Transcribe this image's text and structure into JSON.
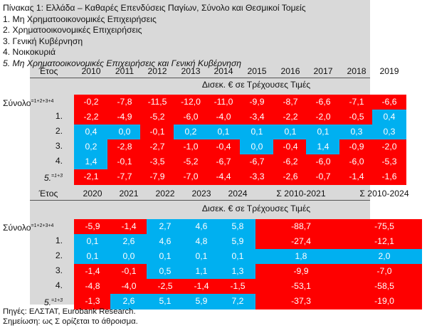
{
  "header": {
    "title": "Πίνακας 1: Ελλάδα – Καθαρές Επενδύσεις Παγίων, Σύνολο και Θεσμικοί Τομείς",
    "lines": [
      "1. Μη Χρηματοοικονομικές Επιχειρήσεις",
      "2. Χρηματοοικονομικές Επιχειρήσεις",
      "3. Γενική Κυβέρνηση",
      "4. Νοικοκυριά",
      "5. Μη Χρηματοοικονομικές Επιχειρήσεις και Γενική Κυβέρνηση"
    ]
  },
  "table1": {
    "year_label": "Έτος",
    "years": [
      "2010",
      "2011",
      "2012",
      "2013",
      "2014",
      "2015",
      "2016",
      "2017",
      "2018",
      "2019"
    ],
    "unit": "Δισεκ. € σε Τρέχουσες Τιμές",
    "rows": [
      {
        "label": "Σύνολο",
        "sup": "=1+2+3+4",
        "italic": false,
        "values": [
          "-0,2",
          "-7,8",
          "-11,5",
          "-12,0",
          "-11,0",
          "-9,9",
          "-8,7",
          "-6,6",
          "-7,1",
          "-6,6"
        ],
        "colors": [
          "r",
          "r",
          "r",
          "r",
          "r",
          "r",
          "r",
          "r",
          "r",
          "r"
        ]
      },
      {
        "label": "1.",
        "sup": "",
        "italic": false,
        "values": [
          "-2,2",
          "-4,9",
          "-5,2",
          "-6,0",
          "-4,0",
          "-3,4",
          "-2,2",
          "-2,0",
          "-0,5",
          "0,4"
        ],
        "colors": [
          "r",
          "r",
          "r",
          "r",
          "r",
          "r",
          "r",
          "r",
          "r",
          "b"
        ]
      },
      {
        "label": "2.",
        "sup": "",
        "italic": false,
        "values": [
          "0,4",
          "0,0",
          "-0,1",
          "0,2",
          "0,1",
          "0,1",
          "0,1",
          "0,1",
          "0,3",
          "0,3"
        ],
        "colors": [
          "b",
          "b",
          "r",
          "b",
          "b",
          "b",
          "b",
          "b",
          "b",
          "b"
        ]
      },
      {
        "label": "3.",
        "sup": "",
        "italic": false,
        "values": [
          "0,2",
          "-2,8",
          "-2,7",
          "-1,0",
          "-0,4",
          "0,0",
          "-0,4",
          "1,4",
          "-0,9",
          "-2,0"
        ],
        "colors": [
          "b",
          "r",
          "r",
          "r",
          "r",
          "b",
          "r",
          "b",
          "r",
          "r"
        ]
      },
      {
        "label": "4.",
        "sup": "",
        "italic": false,
        "values": [
          "1,4",
          "-0,1",
          "-3,5",
          "-5,2",
          "-6,7",
          "-6,7",
          "-6,2",
          "-6,0",
          "-6,0",
          "-5,3"
        ],
        "colors": [
          "b",
          "r",
          "r",
          "r",
          "r",
          "r",
          "r",
          "r",
          "r",
          "r"
        ]
      },
      {
        "label": "5.",
        "sup": "=1+3",
        "italic": true,
        "values": [
          "-2,1",
          "-7,7",
          "-7,9",
          "-7,0",
          "-4,4",
          "-3,3",
          "-2,6",
          "-0,7",
          "-1,4",
          "-1,6"
        ],
        "colors": [
          "r",
          "r",
          "r",
          "r",
          "r",
          "r",
          "r",
          "r",
          "r",
          "r"
        ]
      }
    ]
  },
  "table2": {
    "year_label": "Έτος",
    "years": [
      "2020",
      "2021",
      "2022",
      "2023",
      "2024",
      "Σ 2010-2021",
      "Σ 2010-2024"
    ],
    "unit": "Δισεκ. € σε Τρέχουσες Τιμές",
    "rows": [
      {
        "label": "Σύνολο",
        "sup": "=1+2+3+4",
        "italic": false,
        "values": [
          "-5,9",
          "-1,4",
          "2,7",
          "4,6",
          "5,8",
          "-88,7",
          "-75,5"
        ],
        "colors": [
          "r",
          "r",
          "b",
          "b",
          "b",
          "r",
          "r"
        ]
      },
      {
        "label": "1.",
        "sup": "",
        "italic": false,
        "values": [
          "0,1",
          "2,6",
          "4,6",
          "4,8",
          "5,9",
          "-27,4",
          "-12,1"
        ],
        "colors": [
          "b",
          "b",
          "b",
          "b",
          "b",
          "r",
          "r"
        ]
      },
      {
        "label": "2.",
        "sup": "",
        "italic": false,
        "values": [
          "0,1",
          "0,0",
          "0,1",
          "0,1",
          "0,1",
          "1,8",
          "2,0"
        ],
        "colors": [
          "b",
          "b",
          "b",
          "b",
          "b",
          "b",
          "b"
        ]
      },
      {
        "label": "3.",
        "sup": "",
        "italic": false,
        "values": [
          "-1,4",
          "-0,1",
          "0,5",
          "1,1",
          "1,3",
          "-9,9",
          "-7,0"
        ],
        "colors": [
          "r",
          "r",
          "b",
          "b",
          "b",
          "r",
          "r"
        ]
      },
      {
        "label": "4.",
        "sup": "",
        "italic": false,
        "values": [
          "-4,8",
          "-4,0",
          "-2,5",
          "-1,4",
          "-1,5",
          "-53,1",
          "-58,5"
        ],
        "colors": [
          "r",
          "r",
          "r",
          "r",
          "r",
          "r",
          "r"
        ]
      },
      {
        "label": "5.",
        "sup": "=1+3",
        "italic": true,
        "values": [
          "-1,3",
          "2,6",
          "5,1",
          "5,9",
          "7,2",
          "-37,3",
          "-19,0"
        ],
        "colors": [
          "r",
          "b",
          "b",
          "b",
          "b",
          "r",
          "r"
        ]
      }
    ]
  },
  "source": {
    "line1": "Πηγές: ΕΛΣΤΑΤ, Eurobank Research.",
    "line2": "Σημείωση: ως Σ ορίζεται το άθροισμα."
  }
}
